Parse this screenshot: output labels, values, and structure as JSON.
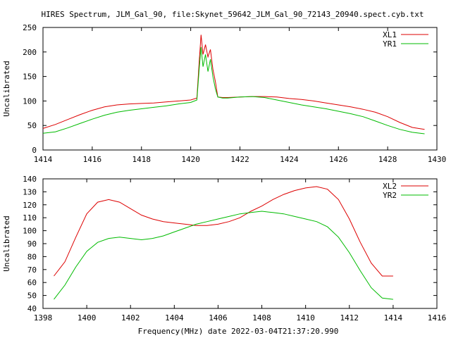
{
  "page_title": "HIRES Spectrum, JLM_Gal_90, file:Skynet_59642_JLM_Gal_90_72143_20940.spect.cyb.txt",
  "footer_label": "Frequency(MHz) date 2022-03-04T21:37:20.990",
  "colors": {
    "red": "#dd0000",
    "green": "#00bb00",
    "axis": "#000000"
  },
  "chart_data": [
    {
      "type": "line",
      "title": "HIRES Spectrum, JLM_Gal_90, file:Skynet_59642_JLM_Gal_90_72143_20940.spect.cyb.txt",
      "xlabel": "",
      "ylabel": "Uncalibrated",
      "xlim": [
        1414,
        1430
      ],
      "ylim": [
        0,
        250
      ],
      "x_ticks": [
        "1414",
        "1416",
        "1418",
        "1420",
        "1422",
        "1424",
        "1426",
        "1428",
        "1430"
      ],
      "y_ticks": [
        "0",
        "50",
        "100",
        "150",
        "200",
        "250"
      ],
      "legend": "top-right",
      "grid": false,
      "series": [
        {
          "name": "XL1",
          "color": "#dd0000",
          "x": [
            1414.0,
            1414.5,
            1415.0,
            1415.5,
            1416.0,
            1416.5,
            1417.0,
            1417.5,
            1418.0,
            1418.5,
            1419.0,
            1419.5,
            1420.0,
            1420.25,
            1420.35,
            1420.42,
            1420.5,
            1420.6,
            1420.7,
            1420.8,
            1420.9,
            1421.0,
            1421.1,
            1421.3,
            1421.5,
            1422.0,
            1422.5,
            1423.0,
            1423.5,
            1424.0,
            1424.5,
            1425.0,
            1425.5,
            1426.0,
            1426.5,
            1427.0,
            1427.5,
            1428.0,
            1428.5,
            1429.0,
            1429.5
          ],
          "y": [
            44,
            52,
            62,
            72,
            81,
            88,
            92,
            94,
            95,
            96,
            98,
            100,
            102,
            106,
            185,
            235,
            195,
            215,
            190,
            205,
            165,
            140,
            108,
            107,
            107,
            108,
            109,
            109,
            108,
            105,
            103,
            100,
            96,
            92,
            88,
            83,
            77,
            68,
            56,
            46,
            42
          ]
        },
        {
          "name": "YR1",
          "color": "#00bb00",
          "x": [
            1414.0,
            1414.5,
            1415.0,
            1415.5,
            1416.0,
            1416.5,
            1417.0,
            1417.5,
            1418.0,
            1418.5,
            1419.0,
            1419.5,
            1420.0,
            1420.25,
            1420.35,
            1420.42,
            1420.5,
            1420.6,
            1420.7,
            1420.8,
            1420.9,
            1421.0,
            1421.1,
            1421.3,
            1421.5,
            1422.0,
            1422.5,
            1423.0,
            1423.5,
            1424.0,
            1424.5,
            1425.0,
            1425.5,
            1426.0,
            1426.5,
            1427.0,
            1427.5,
            1428.0,
            1428.5,
            1429.0,
            1429.5
          ],
          "y": [
            34,
            37,
            45,
            54,
            63,
            71,
            77,
            81,
            84,
            87,
            90,
            94,
            97,
            102,
            170,
            210,
            170,
            195,
            160,
            185,
            150,
            125,
            108,
            106,
            106,
            108,
            109,
            107,
            102,
            97,
            92,
            88,
            84,
            79,
            74,
            68,
            59,
            50,
            42,
            36,
            33
          ]
        }
      ]
    },
    {
      "type": "line",
      "title": "",
      "xlabel": "Frequency(MHz) date 2022-03-04T21:37:20.990",
      "ylabel": "Uncalibrated",
      "xlim": [
        1398,
        1416
      ],
      "ylim": [
        40,
        140
      ],
      "x_ticks": [
        "1398",
        "1400",
        "1402",
        "1404",
        "1406",
        "1408",
        "1410",
        "1412",
        "1414",
        "1416"
      ],
      "y_ticks": [
        "40",
        "50",
        "60",
        "70",
        "80",
        "90",
        "100",
        "110",
        "120",
        "130",
        "140"
      ],
      "legend": "top-right",
      "grid": false,
      "series": [
        {
          "name": "XL2",
          "color": "#dd0000",
          "x": [
            1398.5,
            1399.0,
            1399.5,
            1400.0,
            1400.5,
            1401.0,
            1401.5,
            1402.0,
            1402.5,
            1403.0,
            1403.5,
            1404.0,
            1404.5,
            1405.0,
            1405.5,
            1406.0,
            1406.5,
            1407.0,
            1407.5,
            1408.0,
            1408.5,
            1409.0,
            1409.5,
            1410.0,
            1410.5,
            1411.0,
            1411.5,
            1412.0,
            1412.5,
            1413.0,
            1413.5,
            1414.0
          ],
          "y": [
            65,
            76,
            95,
            113,
            122,
            124,
            122,
            117,
            112,
            109,
            107,
            106,
            105,
            104,
            104,
            105,
            107,
            110,
            115,
            119,
            124,
            128,
            131,
            133,
            134,
            132,
            124,
            109,
            91,
            75,
            65,
            65
          ]
        },
        {
          "name": "YR2",
          "color": "#00bb00",
          "x": [
            1398.5,
            1399.0,
            1399.5,
            1400.0,
            1400.5,
            1401.0,
            1401.5,
            1402.0,
            1402.5,
            1403.0,
            1403.5,
            1404.0,
            1404.5,
            1405.0,
            1405.5,
            1406.0,
            1406.5,
            1407.0,
            1407.5,
            1408.0,
            1408.5,
            1409.0,
            1409.5,
            1410.0,
            1410.5,
            1411.0,
            1411.5,
            1412.0,
            1412.5,
            1413.0,
            1413.5,
            1414.0
          ],
          "y": [
            47,
            58,
            72,
            84,
            91,
            94,
            95,
            94,
            93,
            94,
            96,
            99,
            102,
            105,
            107,
            109,
            111,
            113,
            114,
            115,
            114,
            113,
            111,
            109,
            107,
            103,
            95,
            83,
            69,
            56,
            48,
            47
          ]
        }
      ]
    }
  ]
}
